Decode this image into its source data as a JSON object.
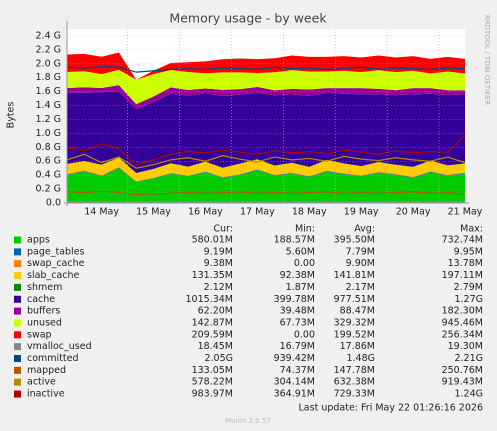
{
  "chart_data": {
    "type": "area",
    "title": "Memory usage - by week",
    "y_label": "Bytes",
    "side_label": "RRDTOOL / TOBI OETIKER",
    "categories": [
      null,
      null,
      "14 May",
      null,
      null,
      "15 May",
      null,
      null,
      "16 May",
      null,
      null,
      "17 May",
      null,
      null,
      "18 May",
      null,
      null,
      "19 May",
      null,
      null,
      "20 May",
      null,
      null,
      "21 May"
    ],
    "ylim": [
      0,
      2.5
    ],
    "yticks": [
      {
        "value": 0,
        "label": "0.0"
      },
      {
        "value": 0.2,
        "label": "0.2 G"
      },
      {
        "value": 0.4,
        "label": "0.4 G"
      },
      {
        "value": 0.6,
        "label": "0.6 G"
      },
      {
        "value": 0.8,
        "label": "0.8 G"
      },
      {
        "value": 1,
        "label": "1.0 G"
      },
      {
        "value": 1.2,
        "label": "1.2 G"
      },
      {
        "value": 1.4,
        "label": "1.4 G"
      },
      {
        "value": 1.6,
        "label": "1.6 G"
      },
      {
        "value": 1.8,
        "label": "1.8 G"
      },
      {
        "value": 2,
        "label": "2.0 G"
      },
      {
        "value": 2.2,
        "label": "2.2 G"
      },
      {
        "value": 2.4,
        "label": "2.4 G"
      }
    ],
    "grid": true,
    "legend_columns": [
      "Cur:",
      "Min:",
      "Avg:",
      "Max:"
    ],
    "series": [
      {
        "name": "apps",
        "color": "#00cc00",
        "style": "area",
        "stats": [
          "580.01M",
          "188.57M",
          "395.50M",
          "732.74M"
        ],
        "values": [
          0.4,
          0.45,
          0.38,
          0.5,
          0.3,
          0.35,
          0.42,
          0.38,
          0.44,
          0.36,
          0.4,
          0.47,
          0.39,
          0.42,
          0.37,
          0.45,
          0.41,
          0.38,
          0.43,
          0.4,
          0.36,
          0.44,
          0.39,
          0.42
        ]
      },
      {
        "name": "page_tables",
        "color": "#0066b3",
        "style": "area",
        "stats": [
          "9.19M",
          "5.60M",
          "7.79M",
          "9.95M"
        ],
        "values": [
          0.009,
          0.009,
          0.009,
          0.009,
          0.009,
          0.009,
          0.009,
          0.009,
          0.009,
          0.009,
          0.009,
          0.009,
          0.009,
          0.009,
          0.009,
          0.009,
          0.009,
          0.009,
          0.009,
          0.009,
          0.009,
          0.009,
          0.009,
          0.009
        ]
      },
      {
        "name": "swap_cache",
        "color": "#ff8000",
        "style": "area",
        "stats": [
          "9.38M",
          "0.00",
          "9.90M",
          "13.78M"
        ],
        "values": [
          0.012,
          0.012,
          0.011,
          0.012,
          0,
          0,
          0,
          0.002,
          0.004,
          0.005,
          0.006,
          0.007,
          0.008,
          0.008,
          0.009,
          0.009,
          0.009,
          0.009,
          0.009,
          0.009,
          0.009,
          0.009,
          0.009,
          0.009
        ]
      },
      {
        "name": "slab_cache",
        "color": "#ffcc00",
        "style": "area",
        "stats": [
          "131.35M",
          "92.38M",
          "141.81M",
          "197.11M"
        ],
        "values": [
          0.14,
          0.13,
          0.15,
          0.13,
          0.12,
          0.13,
          0.14,
          0.13,
          0.14,
          0.13,
          0.15,
          0.14,
          0.13,
          0.14,
          0.13,
          0.15,
          0.14,
          0.13,
          0.14,
          0.13,
          0.14,
          0.15,
          0.13,
          0.13
        ]
      },
      {
        "name": "shmem",
        "color": "#008f00",
        "style": "area",
        "stats": [
          "2.12M",
          "1.87M",
          "2.17M",
          "2.79M"
        ],
        "values": [
          0.002,
          0.002,
          0.002,
          0.002,
          0.002,
          0.002,
          0.002,
          0.002,
          0.002,
          0.002,
          0.002,
          0.002,
          0.002,
          0.002,
          0.002,
          0.002,
          0.002,
          0.002,
          0.002,
          0.002,
          0.002,
          0.002,
          0.002,
          0.002
        ]
      },
      {
        "name": "cache",
        "color": "#330099",
        "style": "area",
        "stats": [
          "1015.34M",
          "399.78M",
          "977.51M",
          "1.27G"
        ],
        "values": [
          1.02,
          0.98,
          1.04,
          0.95,
          0.92,
          0.96,
          1.0,
          1.02,
          0.98,
          1.03,
          0.99,
          0.95,
          1.01,
          0.98,
          1.02,
          0.96,
          1.0,
          1.03,
          0.97,
          1.0,
          1.04,
          0.96,
          1.01,
          0.99
        ]
      },
      {
        "name": "buffers",
        "color": "#990099",
        "style": "area",
        "stats": [
          "62.20M",
          "39.48M",
          "88.47M",
          "182.30M"
        ],
        "values": [
          0.07,
          0.08,
          0.06,
          0.09,
          0.07,
          0.08,
          0.09,
          0.08,
          0.07,
          0.09,
          0.08,
          0.09,
          0.07,
          0.08,
          0.09,
          0.07,
          0.08,
          0.09,
          0.08,
          0.07,
          0.09,
          0.08,
          0.07,
          0.06
        ]
      },
      {
        "name": "unused",
        "color": "#ccff00",
        "style": "area",
        "stats": [
          "142.87M",
          "67.73M",
          "329.32M",
          "945.46M"
        ],
        "values": [
          0.23,
          0.23,
          0.2,
          0.22,
          0.35,
          0.32,
          0.25,
          0.26,
          0.22,
          0.25,
          0.24,
          0.2,
          0.26,
          0.27,
          0.26,
          0.24,
          0.25,
          0.23,
          0.27,
          0.26,
          0.25,
          0.21,
          0.27,
          0.24
        ]
      },
      {
        "name": "swap",
        "color": "#ff0000",
        "style": "area",
        "stats": [
          "209.59M",
          "0.00",
          "199.52M",
          "256.34M"
        ],
        "values": [
          0.25,
          0.25,
          0.25,
          0.25,
          0,
          0.05,
          0.1,
          0.14,
          0.17,
          0.19,
          0.2,
          0.2,
          0.2,
          0.21,
          0.21,
          0.21,
          0.21,
          0.21,
          0.21,
          0.21,
          0.21,
          0.21,
          0.21,
          0.21
        ]
      },
      {
        "name": "vmalloc_used",
        "color": "#888888",
        "style": "line",
        "stats": [
          "18.45M",
          "16.79M",
          "17.86M",
          "19.30M"
        ],
        "values": [
          0.018,
          0.018,
          0.018,
          0.018,
          0.018,
          0.018,
          0.018,
          0.018,
          0.018,
          0.018,
          0.018,
          0.018,
          0.018,
          0.018,
          0.018,
          0.018,
          0.018,
          0.018,
          0.018,
          0.018,
          0.018,
          0.018,
          0.018,
          0.018
        ]
      },
      {
        "name": "committed",
        "color": "#00487d",
        "style": "line",
        "stats": [
          "2.05G",
          "939.42M",
          "1.48G",
          "2.21G"
        ],
        "values": [
          1.95,
          1.94,
          1.96,
          1.95,
          1.88,
          1.9,
          1.92,
          1.93,
          1.92,
          1.94,
          1.93,
          1.92,
          1.95,
          1.93,
          1.94,
          1.92,
          1.93,
          1.95,
          1.92,
          1.94,
          1.93,
          1.92,
          1.94,
          1.93
        ]
      },
      {
        "name": "mapped",
        "color": "#b35a00",
        "style": "line",
        "stats": [
          "133.05M",
          "74.37M",
          "147.78M",
          "250.76M"
        ],
        "values": [
          0.16,
          0.15,
          0.17,
          0.15,
          0.12,
          0.13,
          0.14,
          0.15,
          0.14,
          0.15,
          0.16,
          0.14,
          0.15,
          0.14,
          0.15,
          0.16,
          0.14,
          0.15,
          0.14,
          0.15,
          0.16,
          0.14,
          0.15,
          0.13
        ]
      },
      {
        "name": "active",
        "color": "#b38f00",
        "style": "line",
        "stats": [
          "578.22M",
          "304.14M",
          "632.38M",
          "919.43M"
        ],
        "values": [
          0.62,
          0.7,
          0.58,
          0.66,
          0.5,
          0.55,
          0.62,
          0.65,
          0.6,
          0.68,
          0.63,
          0.59,
          0.66,
          0.62,
          0.64,
          0.6,
          0.67,
          0.63,
          0.61,
          0.65,
          0.62,
          0.6,
          0.66,
          0.58
        ]
      },
      {
        "name": "inactive",
        "color": "#b30000",
        "style": "line",
        "stats": [
          "983.97M",
          "364.91M",
          "729.33M",
          "1.24G"
        ],
        "values": [
          0.8,
          0.75,
          0.85,
          0.78,
          0.55,
          0.62,
          0.7,
          0.74,
          0.72,
          0.76,
          0.73,
          0.7,
          0.75,
          0.72,
          0.74,
          0.71,
          0.76,
          0.73,
          0.7,
          0.75,
          0.72,
          0.74,
          0.73,
          0.98
        ]
      }
    ],
    "last_update": "Last update: Fri May 22 01:26:16 2026",
    "footer": "Munin 2.0.57"
  }
}
